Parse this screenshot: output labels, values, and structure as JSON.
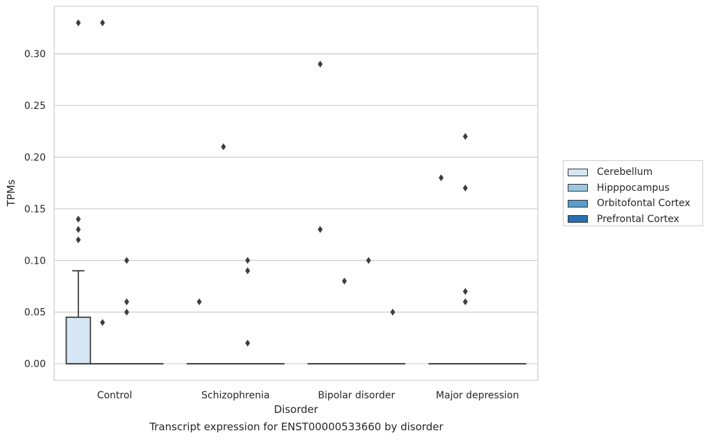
{
  "chart_data": {
    "type": "box",
    "xlabel": "Disorder",
    "ylabel": "TPMs",
    "caption": "Transcript expression for ENST00000533660 by disorder",
    "categories": [
      "Control",
      "Schizophrenia",
      "Bipolar disorder",
      "Major depression"
    ],
    "yticks": [
      "0.00",
      "0.05",
      "0.10",
      "0.15",
      "0.20",
      "0.25",
      "0.30"
    ],
    "ylim": [
      -0.016,
      0.346
    ],
    "grid": true,
    "legend_position": "right",
    "series": [
      {
        "name": "Cerebellum",
        "color": "#d6e6f4",
        "boxes": [
          {
            "q1": 0,
            "median": 0,
            "q3": 0.045,
            "whisker_low": 0,
            "whisker_high": 0.09,
            "outliers": [
              0.12,
              0.13,
              0.14,
              0.33
            ]
          },
          {
            "q1": 0,
            "median": 0,
            "q3": 0,
            "whisker_low": 0,
            "whisker_high": 0,
            "outliers": [
              0.06
            ]
          },
          {
            "q1": 0,
            "median": 0,
            "q3": 0,
            "whisker_low": 0,
            "whisker_high": 0,
            "outliers": [
              0.13,
              0.29
            ]
          },
          {
            "q1": 0,
            "median": 0,
            "q3": 0,
            "whisker_low": 0,
            "whisker_high": 0,
            "outliers": [
              0.18
            ]
          }
        ]
      },
      {
        "name": "Hipppocampus",
        "color": "#9ac8e0",
        "boxes": [
          {
            "q1": 0,
            "median": 0,
            "q3": 0,
            "whisker_low": 0,
            "whisker_high": 0,
            "outliers": [
              0.04,
              0.33
            ]
          },
          {
            "q1": 0,
            "median": 0,
            "q3": 0,
            "whisker_low": 0,
            "whisker_high": 0,
            "outliers": [
              0.21
            ]
          },
          {
            "q1": 0,
            "median": 0,
            "q3": 0,
            "whisker_low": 0,
            "whisker_high": 0,
            "outliers": [
              0.08
            ]
          },
          {
            "q1": 0,
            "median": 0,
            "q3": 0,
            "whisker_low": 0,
            "whisker_high": 0,
            "outliers": [
              0.07,
              0.06,
              0.17,
              0.22
            ]
          }
        ]
      },
      {
        "name": "Orbitofontal Cortex",
        "color": "#5a9ec9",
        "boxes": [
          {
            "q1": 0,
            "median": 0,
            "q3": 0,
            "whisker_low": 0,
            "whisker_high": 0,
            "outliers": [
              0.05,
              0.06,
              0.1
            ]
          },
          {
            "q1": 0,
            "median": 0,
            "q3": 0,
            "whisker_low": 0,
            "whisker_high": 0,
            "outliers": [
              0.02,
              0.09,
              0.1
            ]
          },
          {
            "q1": 0,
            "median": 0,
            "q3": 0,
            "whisker_low": 0,
            "whisker_high": 0,
            "outliers": [
              0.1
            ]
          },
          {
            "q1": 0,
            "median": 0,
            "q3": 0,
            "whisker_low": 0,
            "whisker_high": 0,
            "outliers": []
          }
        ]
      },
      {
        "name": "Prefrontal Cortex",
        "color": "#2a6fb0",
        "boxes": [
          {
            "q1": 0,
            "median": 0,
            "q3": 0,
            "whisker_low": 0,
            "whisker_high": 0,
            "outliers": []
          },
          {
            "q1": 0,
            "median": 0,
            "q3": 0,
            "whisker_low": 0,
            "whisker_high": 0,
            "outliers": []
          },
          {
            "q1": 0,
            "median": 0,
            "q3": 0,
            "whisker_low": 0,
            "whisker_high": 0,
            "outliers": [
              0.05
            ]
          },
          {
            "q1": 0,
            "median": 0,
            "q3": 0,
            "whisker_low": 0,
            "whisker_high": 0,
            "outliers": []
          }
        ]
      }
    ]
  }
}
